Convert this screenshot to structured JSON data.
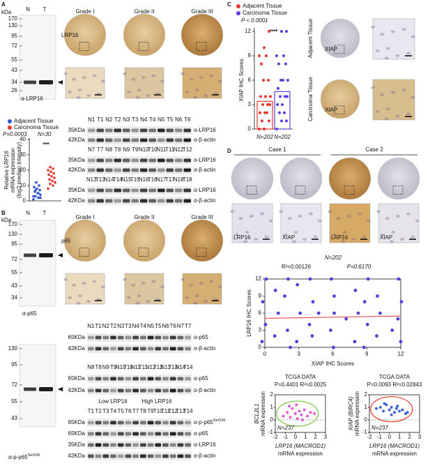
{
  "panel_a": {
    "label": "A",
    "kda_title": "kDa",
    "blot": {
      "lanes": [
        "N",
        "T"
      ],
      "kda": [
        "170",
        "130",
        "95",
        "72",
        "55",
        "43",
        "34",
        "26"
      ],
      "antibody": "α-LRP16"
    },
    "grades": [
      "Grade I",
      "Grade II",
      "Grade III"
    ],
    "ihc_label": "LRP16",
    "chart": {
      "type": "scatter",
      "p_value": "P=0.0003",
      "n": "N=30",
      "significance": "***",
      "y_label": {
        "prefix": "Relative ",
        "gene": "LRP16",
        "line2": "mRNA expression",
        "line3": "(log2 median intensity)"
      },
      "ylim": [
        0,
        40
      ],
      "yticks": [
        0,
        10,
        20,
        30,
        40
      ],
      "series": [
        {
          "name": "Adjacent Tissue",
          "color": "#2f55d4",
          "values": [
            1,
            2,
            3,
            4,
            5,
            6,
            7,
            8,
            9,
            10,
            12,
            3,
            5,
            7,
            2
          ]
        },
        {
          "name": "Carcinoma Tissue",
          "color": "#e8362d",
          "values": [
            8,
            10,
            11,
            12,
            13,
            14,
            15,
            16,
            17,
            18,
            19,
            20,
            21,
            22,
            12
          ]
        }
      ]
    },
    "blot_rows": [
      {
        "lanes": [
          "N1",
          "T1",
          "N2",
          "T2",
          "N3",
          "T3",
          "N4",
          "T4",
          "N5",
          "T5",
          "N6",
          "T6"
        ],
        "bands": [
          {
            "kda": "35KDa",
            "antibody": "α-LRP16"
          },
          {
            "kda": "42KDa",
            "antibody": "α-β-actin"
          }
        ]
      },
      {
        "lanes": [
          "N7",
          "T7",
          "N8",
          "T8",
          "N9",
          "T9",
          "N10",
          "T10",
          "N11",
          "T11",
          "N12",
          "T12"
        ],
        "bands": [
          {
            "kda": "35KDa",
            "antibody": "α-LRP16"
          },
          {
            "kda": "42KDa",
            "antibody": "α-β-actin"
          }
        ]
      },
      {
        "lanes": [
          "N13",
          "T13",
          "N14",
          "T14",
          "N15",
          "T15",
          "N16",
          "T16",
          "N17",
          "T17",
          "N18",
          "T18"
        ],
        "bands": [
          {
            "kda": "35KDa",
            "antibody": "α-LRP16"
          },
          {
            "kda": "42KDa",
            "antibody": "α-β-actin"
          }
        ]
      }
    ]
  },
  "panel_b": {
    "label": "B",
    "kda_title": "kDa",
    "blot1": {
      "lanes": [
        "N",
        "T"
      ],
      "kda": [
        "170",
        "130",
        "95",
        "72",
        "55",
        "43",
        "34"
      ],
      "antibody": "α-p65"
    },
    "blot2": {
      "kda": [
        "130",
        "95",
        "72",
        "55",
        "43"
      ],
      "antibody": "α-p-p65",
      "superscript": "Ser536"
    },
    "grades": [
      "Grade I",
      "Grade II",
      "Grade III"
    ],
    "ihc_label": "p65",
    "blot_rows": [
      {
        "lanes": [
          "N1",
          "T1",
          "N2",
          "T2",
          "N3",
          "T3",
          "N4",
          "T4",
          "N5",
          "T5",
          "N6",
          "T6",
          "N7",
          "T7"
        ],
        "bands": [
          {
            "kda": "65KDa",
            "antibody": "α-p65"
          },
          {
            "kda": "42KDa",
            "antibody": "α-β-actin"
          }
        ]
      },
      {
        "lanes": [
          "N8",
          "T8",
          "N9",
          "T9",
          "N10",
          "T10",
          "N11",
          "T11",
          "N12",
          "T12",
          "N13",
          "T13",
          "N14",
          "T14"
        ],
        "bands": [
          {
            "kda": "65KDa",
            "antibody": "α-p65"
          },
          {
            "kda": "42KDa",
            "antibody": "α-β-actin"
          }
        ]
      }
    ],
    "grouped_row": {
      "groups": [
        {
          "name": "Low LRP16",
          "color": "#2f55d4"
        },
        {
          "name": "High LRP16",
          "color": "#e8362d"
        }
      ],
      "lanes": [
        "T1",
        "T2",
        "T3",
        "T4",
        "T5",
        "T6",
        "T7",
        "T8",
        "T9",
        "T10",
        "T11",
        "T12",
        "T13",
        "T14"
      ],
      "bands": [
        {
          "kda": "65KDa",
          "antibody": "α-p-p65",
          "superscript": "Ser536"
        },
        {
          "kda": "65KDa",
          "antibody": "α-p65"
        },
        {
          "kda": "35KDa",
          "antibody": "α-LRP16"
        },
        {
          "kda": "42KDa",
          "antibody": "α-β-actin"
        }
      ]
    }
  },
  "panel_c": {
    "label": "C",
    "chart": {
      "type": "bar-scatter",
      "p_value": "P < 0.0001",
      "significance": "****",
      "y_label": "XIAP IHC Scores",
      "n_labels": [
        "N=202",
        "N=202"
      ],
      "ylim": [
        0,
        12
      ],
      "yticks": [
        0,
        3,
        6,
        9,
        12
      ],
      "series": [
        {
          "name": "Adjacent Tissue",
          "color": "#e8362d",
          "mean": 3.4,
          "values": [
            0,
            0,
            1,
            1,
            2,
            2,
            2,
            3,
            3,
            3,
            4,
            4,
            4,
            6,
            6,
            8,
            9,
            9,
            10,
            12
          ]
        },
        {
          "name": "Carcinoma Tissue",
          "color": "#5b3bdc",
          "mean": 4.6,
          "values": [
            0,
            1,
            1,
            2,
            2,
            3,
            3,
            4,
            4,
            4,
            5,
            6,
            6,
            6,
            8,
            8,
            9,
            9,
            12,
            12
          ]
        }
      ]
    },
    "tissues": [
      "Adjacent Tissue",
      "Carcinoma Tissue"
    ],
    "ihc_label": "XIAP"
  },
  "panel_d": {
    "label": "D",
    "cases": [
      "Case 1",
      "Case 2"
    ],
    "zoom_labels": [
      "LRP16",
      "XIAP",
      "LRP16",
      "XIAP"
    ],
    "scatter": {
      "type": "scatter",
      "n": "N=202",
      "r2": "R²=0.00126",
      "p_value": "P=0.6170",
      "x_label": "XIAP IHC Scores",
      "y_label": "LRP16 IHC Scores",
      "color": "#5b3bdc",
      "xlim": [
        0,
        12
      ],
      "ylim": [
        0,
        12
      ],
      "xticks": [
        0,
        3,
        6,
        9,
        12
      ],
      "yticks": [
        0,
        3,
        6,
        9,
        12
      ],
      "x": [
        0,
        0,
        0,
        0,
        1,
        1,
        1,
        2,
        2,
        2,
        2,
        3,
        3,
        3,
        4,
        4,
        4,
        4,
        5,
        6,
        6,
        6,
        6,
        7,
        8,
        8,
        8,
        9,
        9,
        9,
        9,
        10,
        10,
        10,
        11,
        12,
        12,
        12,
        12,
        6
      ],
      "y": [
        1,
        4,
        8,
        12,
        2,
        6,
        10,
        0,
        3,
        9,
        12,
        1,
        6,
        11,
        2,
        4,
        8,
        12,
        6,
        0,
        3,
        9,
        12,
        5,
        1,
        6,
        10,
        0,
        4,
        8,
        12,
        2,
        6,
        9,
        3,
        1,
        5,
        8,
        12,
        6
      ],
      "fit_line": {
        "color": "#e8362d",
        "x": [
          0,
          12
        ],
        "y": [
          5.1,
          5.5
        ]
      }
    },
    "tcga": [
      {
        "type": "scatter",
        "title": "TCGA DATA",
        "stats": "P=0.4401 R²=0.0025",
        "n": "N=237",
        "y_gene": "BCL2L1",
        "y_label": "mRNA expression",
        "x_gene": "LRP16 (MACROD1)",
        "x_label": "mRNA expression",
        "color": "#e040c8",
        "xlim": [
          -2,
          3
        ],
        "ylim": [
          -1,
          2
        ],
        "xticks": [
          -2,
          -1,
          0,
          1,
          2,
          3
        ],
        "yticks": [
          -1,
          0,
          1,
          2
        ],
        "x": [
          -1.2,
          -0.8,
          -0.5,
          -0.3,
          0,
          0.2,
          0.4,
          0.6,
          0.9,
          1.2,
          1.5,
          -0.6,
          0.1,
          0.7,
          1.9
        ],
        "y": [
          0.3,
          0.6,
          0.2,
          0.9,
          0.5,
          0.1,
          0.7,
          0.4,
          0.8,
          0.3,
          0.6,
          1.1,
          1.2,
          0.0,
          0.5
        ]
      },
      {
        "type": "scatter",
        "title": "TCGA DATA",
        "stats": "P=0.0093 R²=0.02843",
        "n": "N=237",
        "y_gene": "XIAP (BIRC4)",
        "y_label": "mRNA expression",
        "x_gene": "LRP16 (MACROD1)",
        "x_label": "mRNA expression",
        "color": "#1f4fd0",
        "xlim": [
          -2,
          3
        ],
        "ylim": [
          -1,
          2
        ],
        "xticks": [
          -2,
          -1,
          0,
          1,
          2,
          3
        ],
        "yticks": [
          -1,
          0,
          1,
          2
        ],
        "x": [
          -1.3,
          -0.9,
          -0.6,
          -0.3,
          0,
          0.2,
          0.5,
          0.7,
          1.0,
          1.3,
          1.6,
          -0.5,
          0.2,
          0.8,
          1.8
        ],
        "y": [
          0.9,
          1.0,
          0.7,
          1.2,
          0.8,
          1.0,
          0.6,
          0.9,
          0.7,
          0.8,
          0.5,
          1.3,
          0.4,
          1.1,
          0.6
        ]
      }
    ]
  }
}
